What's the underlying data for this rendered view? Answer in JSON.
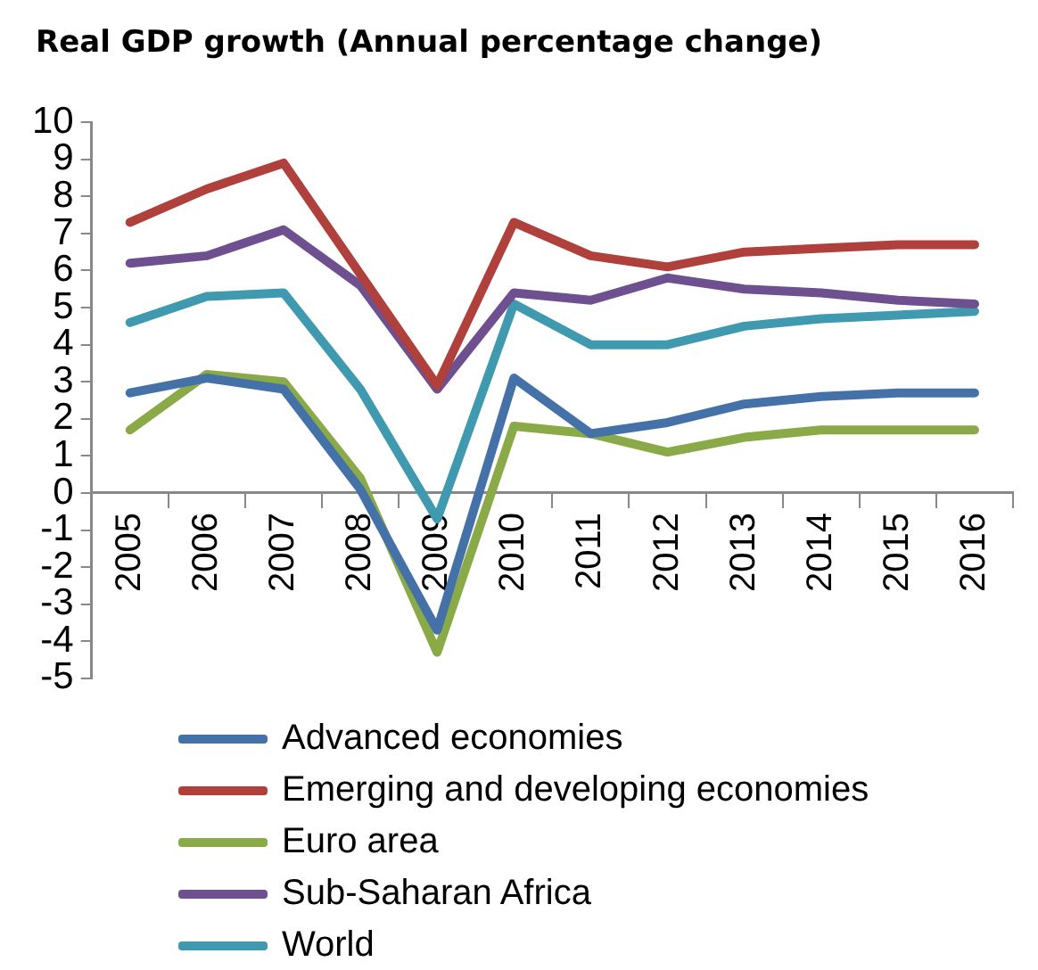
{
  "chart_data": {
    "type": "line",
    "title": "Real GDP growth (Annual percentage change)",
    "categories": [
      "2005",
      "2006",
      "2007",
      "2008",
      "2009",
      "2010",
      "2011",
      "2012",
      "2013",
      "2014",
      "2015",
      "2016"
    ],
    "series": [
      {
        "name": "Advanced economies",
        "color": "#4472a8",
        "values": [
          2.7,
          3.1,
          2.8,
          0.1,
          -3.7,
          3.1,
          1.6,
          1.9,
          2.4,
          2.6,
          2.7,
          2.7
        ]
      },
      {
        "name": "Emerging and developing economies",
        "color": "#b0403c",
        "values": [
          7.3,
          8.2,
          8.9,
          5.9,
          2.9,
          7.3,
          6.4,
          6.1,
          6.5,
          6.6,
          6.7,
          6.7
        ]
      },
      {
        "name": "Euro area",
        "color": "#8aaa48",
        "values": [
          1.7,
          3.2,
          3.0,
          0.4,
          -4.3,
          1.8,
          1.6,
          1.1,
          1.5,
          1.7,
          1.7,
          1.7
        ]
      },
      {
        "name": "Sub-Saharan Africa",
        "color": "#6e5090",
        "values": [
          6.2,
          6.4,
          7.1,
          5.6,
          2.8,
          5.4,
          5.2,
          5.8,
          5.5,
          5.4,
          5.2,
          5.1
        ]
      },
      {
        "name": "World",
        "color": "#3f9ab0",
        "values": [
          4.6,
          5.3,
          5.4,
          2.8,
          -0.7,
          5.1,
          4.0,
          4.0,
          4.5,
          4.7,
          4.8,
          4.9
        ]
      }
    ],
    "ylim": [
      -5,
      10
    ],
    "yticks": [
      -5,
      -4,
      -3,
      -2,
      -1,
      0,
      1,
      2,
      3,
      4,
      5,
      6,
      7,
      8,
      9,
      10
    ],
    "grid": false,
    "legend": "bottom",
    "marker": "none",
    "line_style": "solid"
  }
}
